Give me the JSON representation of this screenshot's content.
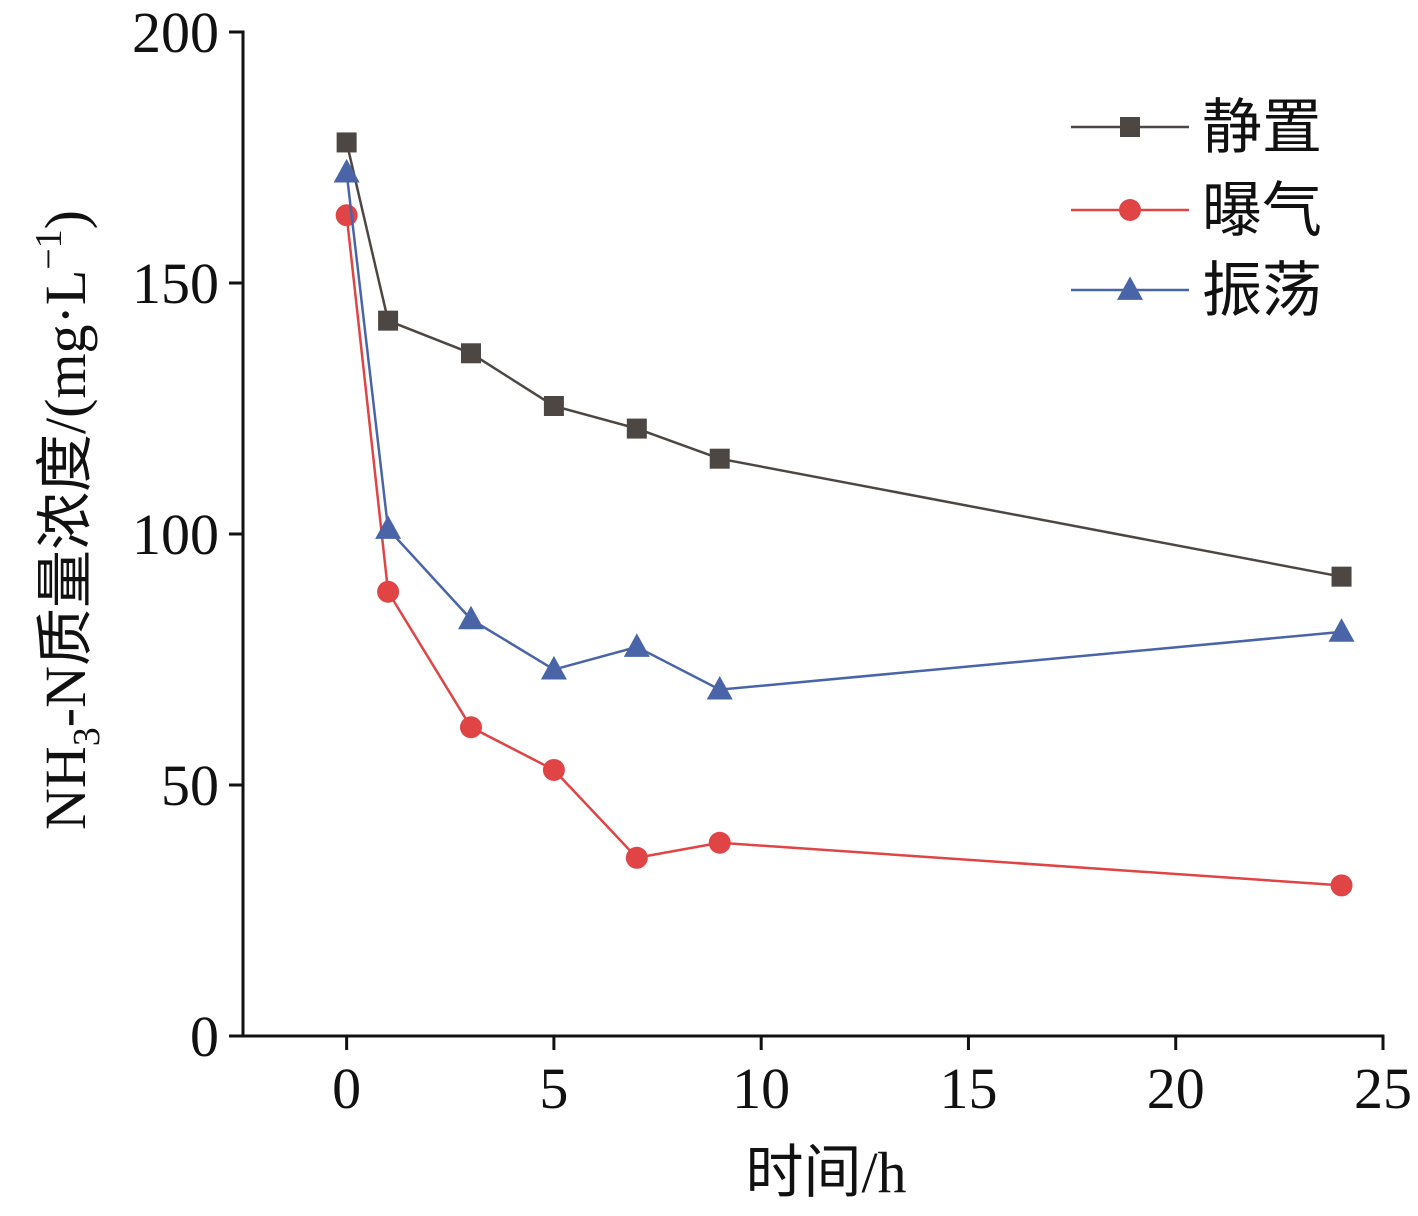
{
  "chart_data": {
    "type": "line",
    "xlabel": "时间/h",
    "ylabel": {
      "prefix": "NH",
      "subscript": "3",
      "middle": "-N质量浓度/(mg·L",
      "superscript": "−1",
      "suffix": ")"
    },
    "xlim": [
      -2.5,
      25
    ],
    "ylim": [
      0,
      200
    ],
    "xticks": [
      0,
      5,
      10,
      15,
      20,
      25
    ],
    "yticks": [
      0,
      50,
      100,
      150,
      200
    ],
    "grid": false,
    "legend_position": "top-right",
    "series": [
      {
        "name": "静置",
        "color": "#4d4743",
        "marker": "square",
        "x": [
          0,
          1,
          3,
          5,
          7,
          9,
          24
        ],
        "y": [
          178,
          142.5,
          136,
          125.5,
          121,
          115,
          91.5
        ]
      },
      {
        "name": "曝气",
        "color": "#e04445",
        "marker": "circle",
        "x": [
          0,
          1,
          3,
          5,
          7,
          9,
          24
        ],
        "y": [
          163.5,
          88.5,
          61.5,
          53,
          35.5,
          38.5,
          30
        ]
      },
      {
        "name": "振荡",
        "color": "#4a64a8",
        "marker": "triangle",
        "x": [
          0,
          1,
          3,
          5,
          7,
          9,
          24
        ],
        "y": [
          172,
          101,
          83,
          73,
          77.5,
          69,
          80.5
        ]
      }
    ]
  }
}
